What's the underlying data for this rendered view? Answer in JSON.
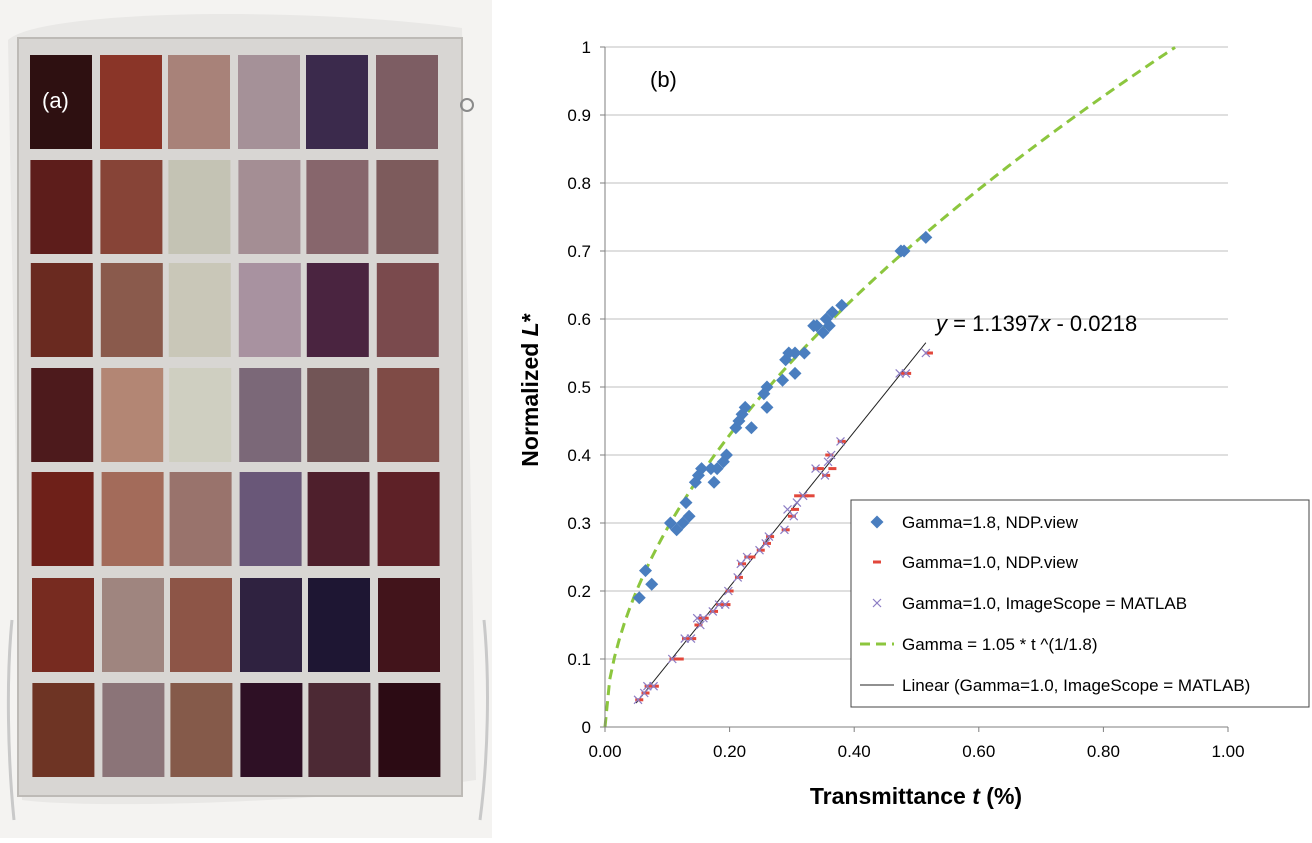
{
  "panel_a": {
    "label": "(a)",
    "swatch_colors": [
      [
        "#2e1011",
        "#8a3528",
        "#a88279",
        "#a59198",
        "#3b2a4c",
        "#7d5d63"
      ],
      [
        "#5d1d1b",
        "#874437",
        "#c4c3b4",
        "#a48e94",
        "#87666c",
        "#7d5b5c"
      ],
      [
        "#6a2a20",
        "#8a5a4c",
        "#c9c7b8",
        "#a892a0",
        "#4a2440",
        "#7a4a4d"
      ],
      [
        "#4d1a1c",
        "#b38674",
        "#cfcfc1",
        "#7b6878",
        "#725556",
        "#7f4b46"
      ],
      [
        "#6e2019",
        "#a36b5a",
        "#99736c",
        "#695778",
        "#4e1f2c",
        "#5e2127"
      ],
      [
        "#772b20",
        "#9f857f",
        "#8d5547",
        "#2f2240",
        "#1e1633",
        "#42141b"
      ],
      [
        "#6e3424",
        "#8b7478",
        "#855a4a",
        "#2e1025",
        "#4c2934",
        "#2c0b14"
      ]
    ]
  },
  "chart_data": {
    "type": "scatter",
    "panel_label": "(b)",
    "xlabel": "Transmittance t (%)",
    "xlabel_parts": {
      "main": "Transmittance ",
      "italic": "t",
      "tail": " (%)"
    },
    "ylabel": "Normalized L*",
    "ylabel_parts": {
      "main": "Normalized ",
      "italic": "L",
      "tail": "*"
    },
    "xlim": [
      0,
      1
    ],
    "ylim": [
      0,
      1
    ],
    "x_ticks": [
      "0.00",
      "0.20",
      "0.40",
      "0.60",
      "0.80",
      "1.00"
    ],
    "y_ticks": [
      "0",
      "0.1",
      "0.2",
      "0.3",
      "0.4",
      "0.5",
      "0.6",
      "0.7",
      "0.8",
      "0.9",
      "1"
    ],
    "grid": "horizontal",
    "legend_position": "bottom-right",
    "annotation": "y = 1.1397x - 0.0218",
    "annotation_parts": [
      "y",
      " = 1.1397",
      "x",
      " - 0.0218"
    ],
    "colors": {
      "gamma18": "#4a7ebf",
      "gamma10_ndp": "#e2473b",
      "gamma10_imagescope": "#8c7dc4",
      "fit_curve": "#8cc63e",
      "linear": "#222222"
    },
    "series": [
      {
        "name": "Gamma=1.8, NDP.view",
        "marker": "diamond",
        "points": [
          [
            0.055,
            0.19
          ],
          [
            0.065,
            0.23
          ],
          [
            0.075,
            0.21
          ],
          [
            0.105,
            0.3
          ],
          [
            0.115,
            0.29
          ],
          [
            0.125,
            0.3
          ],
          [
            0.13,
            0.33
          ],
          [
            0.135,
            0.31
          ],
          [
            0.145,
            0.36
          ],
          [
            0.15,
            0.37
          ],
          [
            0.155,
            0.38
          ],
          [
            0.17,
            0.38
          ],
          [
            0.175,
            0.36
          ],
          [
            0.18,
            0.38
          ],
          [
            0.19,
            0.39
          ],
          [
            0.195,
            0.4
          ],
          [
            0.21,
            0.44
          ],
          [
            0.215,
            0.45
          ],
          [
            0.22,
            0.46
          ],
          [
            0.225,
            0.47
          ],
          [
            0.235,
            0.44
          ],
          [
            0.255,
            0.49
          ],
          [
            0.26,
            0.5
          ],
          [
            0.26,
            0.47
          ],
          [
            0.285,
            0.51
          ],
          [
            0.29,
            0.54
          ],
          [
            0.295,
            0.55
          ],
          [
            0.305,
            0.55
          ],
          [
            0.305,
            0.52
          ],
          [
            0.32,
            0.55
          ],
          [
            0.335,
            0.59
          ],
          [
            0.34,
            0.59
          ],
          [
            0.35,
            0.58
          ],
          [
            0.355,
            0.6
          ],
          [
            0.36,
            0.59
          ],
          [
            0.365,
            0.61
          ],
          [
            0.38,
            0.62
          ],
          [
            0.475,
            0.7
          ],
          [
            0.48,
            0.7
          ],
          [
            0.515,
            0.72
          ]
        ]
      },
      {
        "name": "Gamma=1.0, NDP.view",
        "marker": "dash",
        "points": [
          [
            0.055,
            0.04
          ],
          [
            0.065,
            0.05
          ],
          [
            0.07,
            0.06
          ],
          [
            0.08,
            0.06
          ],
          [
            0.11,
            0.1
          ],
          [
            0.12,
            0.1
          ],
          [
            0.13,
            0.13
          ],
          [
            0.14,
            0.13
          ],
          [
            0.15,
            0.15
          ],
          [
            0.155,
            0.16
          ],
          [
            0.16,
            0.16
          ],
          [
            0.175,
            0.17
          ],
          [
            0.185,
            0.18
          ],
          [
            0.195,
            0.18
          ],
          [
            0.2,
            0.2
          ],
          [
            0.215,
            0.22
          ],
          [
            0.22,
            0.24
          ],
          [
            0.23,
            0.25
          ],
          [
            0.235,
            0.25
          ],
          [
            0.25,
            0.26
          ],
          [
            0.26,
            0.27
          ],
          [
            0.265,
            0.28
          ],
          [
            0.29,
            0.29
          ],
          [
            0.3,
            0.31
          ],
          [
            0.305,
            0.32
          ],
          [
            0.31,
            0.34
          ],
          [
            0.32,
            0.34
          ],
          [
            0.33,
            0.34
          ],
          [
            0.34,
            0.38
          ],
          [
            0.345,
            0.38
          ],
          [
            0.355,
            0.37
          ],
          [
            0.36,
            0.4
          ],
          [
            0.365,
            0.38
          ],
          [
            0.38,
            0.42
          ],
          [
            0.48,
            0.52
          ],
          [
            0.485,
            0.52
          ],
          [
            0.52,
            0.55
          ]
        ]
      },
      {
        "name": "Gamma=1.0, ImageScope = MATLAB",
        "marker": "x",
        "points": [
          [
            0.053,
            0.04
          ],
          [
            0.063,
            0.05
          ],
          [
            0.068,
            0.06
          ],
          [
            0.078,
            0.06
          ],
          [
            0.108,
            0.1
          ],
          [
            0.128,
            0.13
          ],
          [
            0.138,
            0.13
          ],
          [
            0.148,
            0.16
          ],
          [
            0.153,
            0.15
          ],
          [
            0.158,
            0.16
          ],
          [
            0.173,
            0.17
          ],
          [
            0.183,
            0.18
          ],
          [
            0.193,
            0.18
          ],
          [
            0.198,
            0.2
          ],
          [
            0.213,
            0.22
          ],
          [
            0.218,
            0.24
          ],
          [
            0.228,
            0.25
          ],
          [
            0.248,
            0.26
          ],
          [
            0.258,
            0.27
          ],
          [
            0.263,
            0.28
          ],
          [
            0.288,
            0.29
          ],
          [
            0.293,
            0.32
          ],
          [
            0.303,
            0.31
          ],
          [
            0.308,
            0.33
          ],
          [
            0.318,
            0.34
          ],
          [
            0.338,
            0.38
          ],
          [
            0.353,
            0.37
          ],
          [
            0.358,
            0.39
          ],
          [
            0.363,
            0.4
          ],
          [
            0.378,
            0.42
          ],
          [
            0.473,
            0.52
          ],
          [
            0.483,
            0.52
          ],
          [
            0.515,
            0.55
          ]
        ]
      },
      {
        "name": "Gamma = 1.05 * t ^(1/1.8)",
        "type": "curve",
        "style": "dashed",
        "formula": "1.05 * t^(1/1.8)",
        "x_range": [
          0,
          0.915
        ]
      },
      {
        "name": "Linear (Gamma=1.0, ImageScope = MATLAB)",
        "type": "line",
        "slope": 1.1397,
        "intercept": -0.0218,
        "x_range": [
          0.05,
          0.515
        ]
      }
    ]
  }
}
